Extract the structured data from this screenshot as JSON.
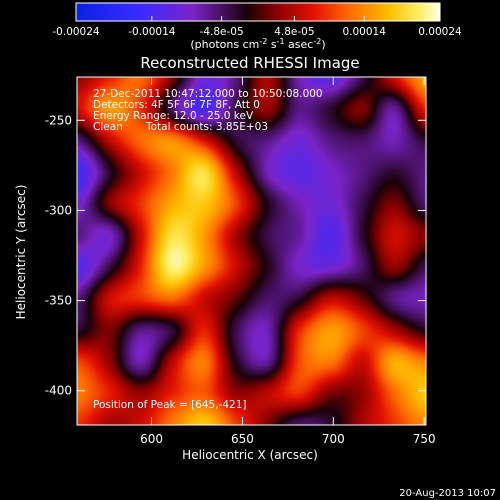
{
  "chart_data": {
    "type": "heatmap",
    "title": "Reconstructed RHESSI Image",
    "xlabel": "Heliocentric X (arcsec)",
    "ylabel": "Heliocentric Y (arcsec)",
    "xlim": [
      559,
      751
    ],
    "ylim": [
      -419,
      -226
    ],
    "x_ticks": [
      "600",
      "650",
      "700",
      "750"
    ],
    "x_tick_values": [
      600,
      650,
      700,
      750
    ],
    "y_ticks": [
      "-250",
      "-300",
      "-350",
      "-400"
    ],
    "y_tick_values": [
      -250,
      -300,
      -350,
      -400
    ],
    "colorbar": {
      "ticks": [
        "-0.00024",
        "-0.00014",
        "-4.8e-05",
        "4.8e-05",
        "0.00014",
        "0.00024"
      ],
      "tick_values": [
        -0.00024,
        -0.00014,
        -4.8e-05,
        4.8e-05,
        0.00014,
        0.00024
      ],
      "range": [
        -0.00024,
        0.00024
      ],
      "unit_prefix": "(photons cm",
      "unit_sup1": "-2",
      "unit_mid1": " s",
      "unit_sup2": "-1",
      "unit_mid2": " asec",
      "unit_sup3": "-2",
      "unit_suffix": ")",
      "colormap": "rainbow-black-body (blue-violet-black-red-orange-yellow-white)"
    },
    "annotations": {
      "time_range": "27-Dec-2011 10:47:12.000 to 10:50:08.000",
      "detectors": "Detectors: 4F 5F 6F 7F 8F, Att 0",
      "energy_range": "Energy Range: 12.0 - 25.0 keV",
      "algorithm": "Clean",
      "total_counts": "Total counts: 3.85E+03",
      "peak": "Position of Peak = [645,-421]"
    },
    "peak_position": [
      645,
      -421
    ],
    "value_grid_note": "approximate flux values (x 1e-4) on a 12x12 grid, rows top (north) to bottom",
    "values": [
      [
        0.3,
        0.8,
        1.2,
        0.2,
        -1.0,
        -0.6,
        0.4,
        -0.8,
        -1.2,
        -0.4,
        0.6,
        1.6
      ],
      [
        0.6,
        1.5,
        0.9,
        -0.5,
        -1.4,
        -0.4,
        0.3,
        -0.6,
        -0.3,
        0.2,
        -0.7,
        0.8
      ],
      [
        -0.6,
        0.5,
        1.2,
        1.4,
        0.7,
        -0.3,
        -0.6,
        -1.0,
        -0.6,
        -0.5,
        -0.8,
        -0.3
      ],
      [
        -1.5,
        -0.3,
        0.6,
        1.3,
        2.0,
        0.5,
        -0.8,
        -1.2,
        -0.9,
        -0.6,
        -0.3,
        -0.6
      ],
      [
        -1.0,
        0.2,
        0.9,
        1.6,
        1.8,
        1.0,
        -0.2,
        -0.8,
        -1.0,
        -0.4,
        0.2,
        -0.5
      ],
      [
        -0.6,
        -0.9,
        0.6,
        2.0,
        1.5,
        0.4,
        -0.4,
        -0.7,
        -1.3,
        -0.3,
        0.6,
        0.2
      ],
      [
        -1.3,
        -0.4,
        0.8,
        2.2,
        1.5,
        0.6,
        -0.2,
        -0.9,
        -1.0,
        -0.5,
        0.3,
        -0.4
      ],
      [
        -0.6,
        0.6,
        0.9,
        1.2,
        0.6,
        0.1,
        -0.5,
        -0.3,
        0.5,
        0.1,
        -0.6,
        -0.8
      ],
      [
        -0.3,
        0.2,
        -0.6,
        -0.3,
        0.8,
        -0.4,
        -0.8,
        0.8,
        1.5,
        1.0,
        0.4,
        -0.2
      ],
      [
        1.0,
        0.3,
        -0.8,
        0.5,
        1.3,
        -0.2,
        -0.7,
        1.0,
        1.3,
        0.6,
        1.6,
        1.3
      ],
      [
        1.3,
        0.8,
        0.3,
        0.8,
        1.1,
        0.3,
        0.5,
        0.9,
        0.2,
        0.3,
        1.2,
        1.8
      ],
      [
        0.9,
        0.4,
        0.6,
        1.3,
        1.8,
        1.0,
        0.2,
        -0.5,
        -0.3,
        0.4,
        0.9,
        1.4
      ]
    ]
  },
  "footer": {
    "date": "20-Aug-2013 10:07"
  }
}
